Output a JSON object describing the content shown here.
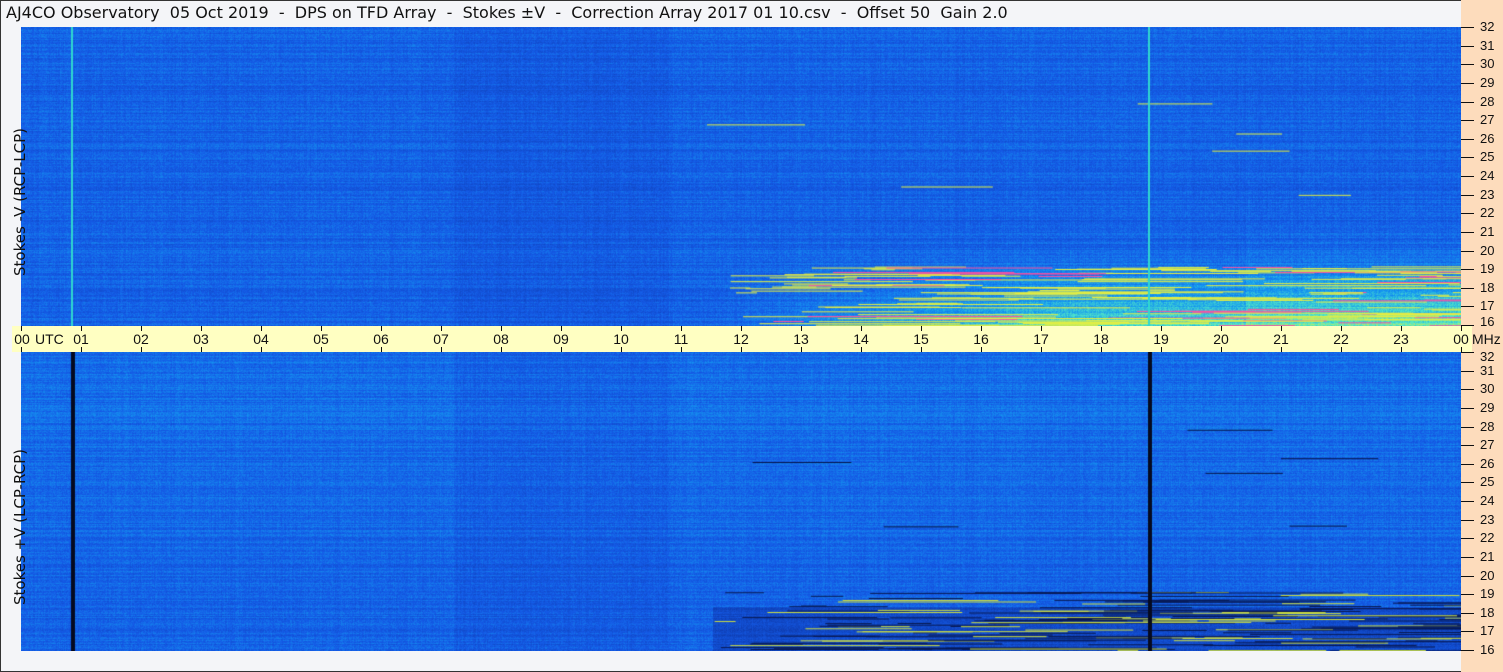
{
  "title": "AJ4CO Observatory  05 Oct 2019  -  DPS on TFD Array  -  Stokes ±V  -  Correction Array 2017 01 10.csv  -  Offset 50  Gain 2.0",
  "chart_data": {
    "type": "heatmap",
    "panels": [
      {
        "label": "Stokes -V (RCP-LCP)"
      },
      {
        "label": "Stokes +V (LCP-RCP)"
      }
    ],
    "x_axis": {
      "unit_label": "UTC",
      "ticks": [
        "00",
        "01",
        "02",
        "03",
        "04",
        "05",
        "06",
        "07",
        "08",
        "09",
        "10",
        "11",
        "12",
        "13",
        "14",
        "15",
        "16",
        "17",
        "18",
        "19",
        "20",
        "21",
        "22",
        "23",
        "00"
      ],
      "range_hours": [
        0,
        24
      ]
    },
    "y_axis": {
      "unit_label": "MHz",
      "ticks": [
        32,
        31,
        30,
        29,
        28,
        27,
        26,
        25,
        24,
        23,
        22,
        21,
        20,
        19,
        18,
        17,
        16
      ],
      "range": [
        16,
        32
      ]
    },
    "colormap": [
      "#0a2a8a",
      "#1560e8",
      "#20a0f0",
      "#40e0c0",
      "#f0f040",
      "#ff40a0"
    ]
  }
}
